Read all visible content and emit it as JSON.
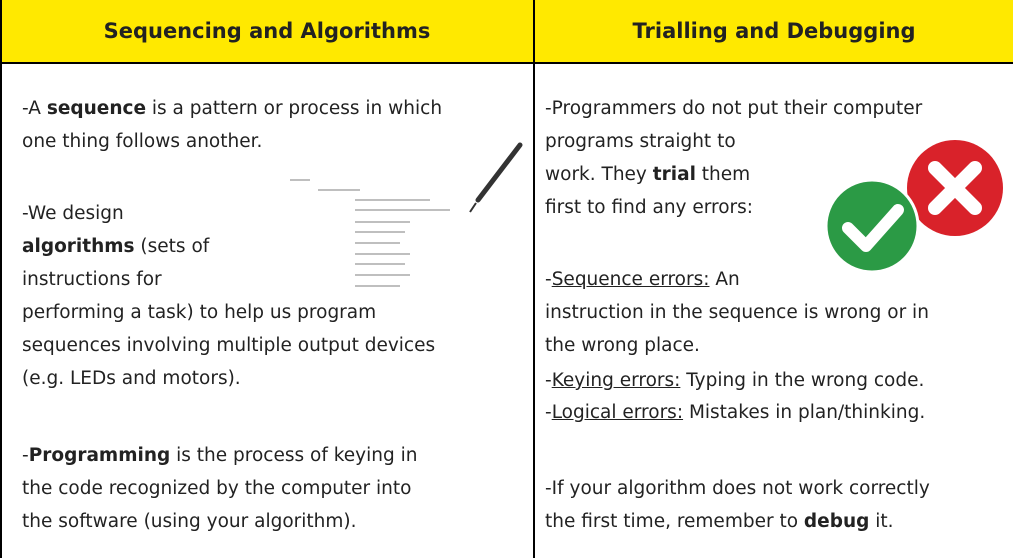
{
  "columns": [
    {
      "heading": "Sequencing and Algorithms",
      "paragraphs": [
        {
          "lines": [
            [
              {
                "text": "-A "
              },
              {
                "text": "sequence",
                "bold": true
              },
              {
                "text": " is a pattern or process in which"
              }
            ],
            [
              {
                "text": "one thing follows another."
              }
            ]
          ]
        },
        {
          "lines": [
            [
              {
                "text": "-We design"
              }
            ],
            [
              {
                "text": "algorithms",
                "bold": true
              },
              {
                "text": " (sets of"
              }
            ],
            [
              {
                "text": "instructions for"
              }
            ],
            [
              {
                "text": "performing a task) to help us program"
              }
            ],
            [
              {
                "text": "sequences involving multiple output devices"
              }
            ],
            [
              {
                "text": "(e.g. LEDs and motors)."
              }
            ]
          ]
        },
        {
          "lines": [
            [
              {
                "text": "-"
              },
              {
                "text": "Programming",
                "bold": true
              },
              {
                "text": " is the process of keying in"
              }
            ],
            [
              {
                "text": "the code recognized by the computer into"
              }
            ],
            [
              {
                "text": "the software (using your algorithm)."
              }
            ]
          ]
        }
      ]
    },
    {
      "heading": "Trialling and Debugging",
      "paragraphs": [
        {
          "lines": [
            [
              {
                "text": "-Programmers do not put their computer"
              }
            ],
            [
              {
                "text": "programs straight to"
              }
            ],
            [
              {
                "text": "work. They "
              },
              {
                "text": "trial",
                "bold": true
              },
              {
                "text": " them"
              }
            ],
            [
              {
                "text": "first to find any errors:"
              }
            ]
          ]
        },
        {
          "lines": [
            [
              {
                "text": "-"
              },
              {
                "text": "Sequence errors:",
                "underline": true
              },
              {
                "text": " An"
              }
            ],
            [
              {
                "text": "instruction in the sequence is wrong or in"
              }
            ],
            [
              {
                "text": "the wrong place."
              }
            ]
          ]
        },
        {
          "lines": [
            [
              {
                "text": "-"
              },
              {
                "text": "Keying errors:",
                "underline": true
              },
              {
                "text": " Typing in the wrong code."
              }
            ]
          ]
        },
        {
          "lines": [
            [
              {
                "text": "-"
              },
              {
                "text": "Logical errors:",
                "underline": true
              },
              {
                "text": " Mistakes in plan/thinking."
              }
            ]
          ]
        },
        {
          "lines": [
            [
              {
                "text": "-If your algorithm does not work correctly"
              }
            ],
            [
              {
                "text": "the first time, remember to "
              },
              {
                "text": "debug",
                "bold": true
              },
              {
                "text": " it."
              }
            ]
          ]
        }
      ]
    }
  ]
}
